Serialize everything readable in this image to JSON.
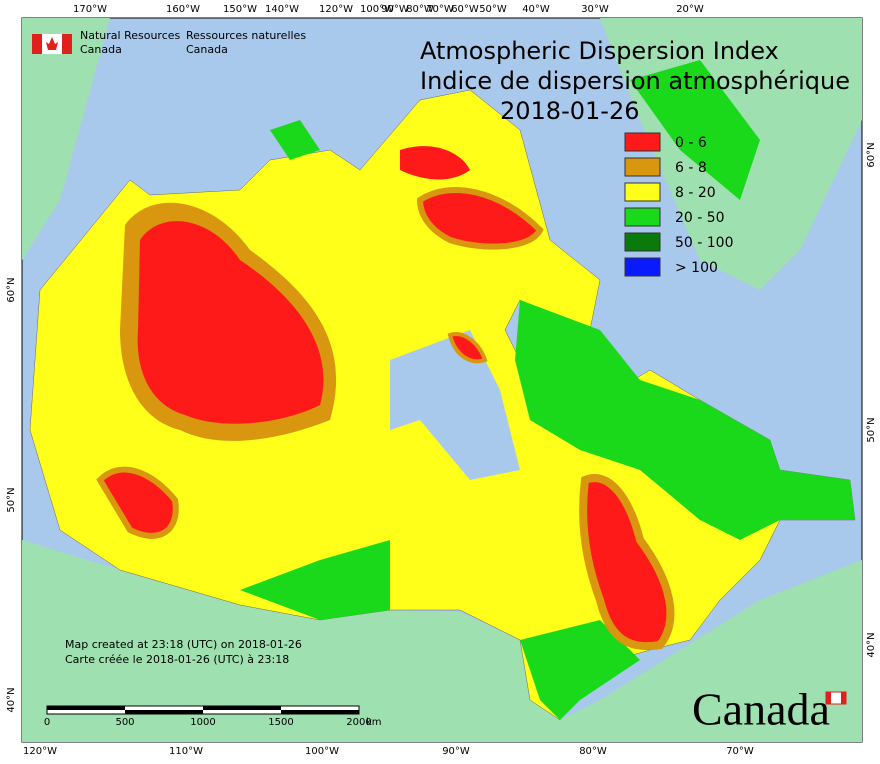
{
  "header": {
    "agency_en": "Natural Resources",
    "agency_en_2": "Canada",
    "agency_fr": "Ressources naturelles",
    "agency_fr_2": "Canada"
  },
  "title": {
    "en": "Atmospheric Dispersion Index",
    "fr": "Indice de dispersion atmosphérique",
    "date": "2018-01-26"
  },
  "legend": [
    {
      "label": "0 - 6",
      "color": "#ff1a1a"
    },
    {
      "label": "6 - 8",
      "color": "#d9960f"
    },
    {
      "label": "8 - 20",
      "color": "#ffff1a"
    },
    {
      "label": "20 - 50",
      "color": "#1ad91a"
    },
    {
      "label": "50 - 100",
      "color": "#0a7a0a"
    },
    {
      "label": "> 100",
      "color": "#0a1aff"
    }
  ],
  "top_axis": [
    "170°W",
    "160°W",
    "150°W",
    "140°W",
    "120°W",
    "100°W",
    "90°W",
    "80°W",
    "70°W",
    "60°W",
    "50°W",
    "40°W",
    "30°W",
    "20°W"
  ],
  "bottom_axis": [
    "120°W",
    "110°W",
    "100°W",
    "90°W",
    "80°W",
    "70°W"
  ],
  "left_axis": [
    "60°N",
    "50°N",
    "40°N"
  ],
  "right_axis": [
    "60°N",
    "50°N",
    "40°N"
  ],
  "notes": [
    "Map created at 23:18 (UTC) on 2018-01-26",
    "Carte créée le 2018-01-26 (UTC) à 23:18"
  ],
  "scale": {
    "labels": [
      0,
      500,
      1000,
      1500,
      2000
    ],
    "unit": "km"
  },
  "wordmark": "Canada"
}
